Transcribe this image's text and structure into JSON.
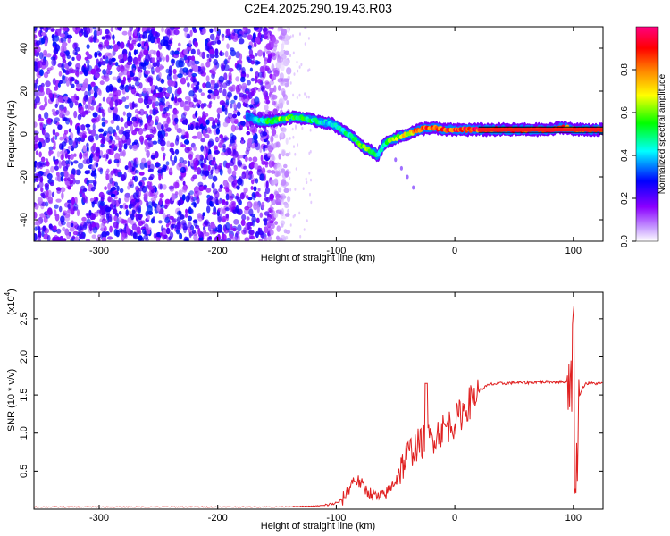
{
  "title": "C2E4.2025.290.19.43.R03",
  "top_panel": {
    "xlabel": "Height of straight line (km)",
    "ylabel": "Frequency (Hz)",
    "xlim": [
      -355,
      125
    ],
    "ylim": [
      -50,
      50
    ],
    "xticks": [
      {
        "v": -300,
        "t": "-300"
      },
      {
        "v": -200,
        "t": "-200"
      },
      {
        "v": -100,
        "t": "-100"
      },
      {
        "v": 0,
        "t": "0"
      },
      {
        "v": 100,
        "t": "100"
      }
    ],
    "yticks": [
      {
        "v": -40,
        "t": "-40"
      },
      {
        "v": -20,
        "t": "-20"
      },
      {
        "v": 0,
        "t": "0"
      },
      {
        "v": 20,
        "t": "20"
      },
      {
        "v": 40,
        "t": "40"
      }
    ],
    "colorbar": {
      "label": "Normalized spectral amplitude",
      "range": [
        0,
        1
      ],
      "ticks": [
        {
          "v": 0.0,
          "t": "0.0"
        },
        {
          "v": 0.2,
          "t": "0.2"
        },
        {
          "v": 0.4,
          "t": "0.4"
        },
        {
          "v": 0.6,
          "t": "0.6"
        },
        {
          "v": 0.8,
          "t": "0.8"
        }
      ],
      "colors": [
        "#ffffff",
        "#8b00ff",
        "#0000ff",
        "#00ffff",
        "#00ff00",
        "#ffff00",
        "#ff8000",
        "#ff0000",
        "#ff0080"
      ]
    }
  },
  "bottom_panel": {
    "xlabel": "Height of straight line (km)",
    "ylabel": "SNR (10 * v/v)",
    "multiplier_base": "(x10",
    "multiplier_exp": "4",
    "multiplier_close": ")",
    "xlim": [
      -355,
      125
    ],
    "ylim": [
      0,
      2.85
    ],
    "xticks": [
      {
        "v": -300,
        "t": "-300"
      },
      {
        "v": -200,
        "t": "-200"
      },
      {
        "v": -100,
        "t": "-100"
      },
      {
        "v": 0,
        "t": "0"
      },
      {
        "v": 100,
        "t": "100"
      }
    ],
    "yticks": [
      {
        "v": 0.5,
        "t": "0.5"
      },
      {
        "v": 1.0,
        "t": "1.0"
      },
      {
        "v": 1.5,
        "t": "1.5"
      },
      {
        "v": 2.0,
        "t": "2.0"
      },
      {
        "v": 2.5,
        "t": "2.5"
      }
    ]
  },
  "chart_data": [
    {
      "type": "heatmap",
      "title": "C2E4.2025.290.19.43.R03",
      "xlabel": "Height of straight line (km)",
      "ylabel": "Frequency (Hz)",
      "xlim": [
        -355,
        125
      ],
      "ylim": [
        -50,
        50
      ],
      "noise_region_x": [
        -355,
        -140
      ],
      "ridge": {
        "x": [
          -175,
          -165,
          -155,
          -145,
          -135,
          -125,
          -115,
          -105,
          -95,
          -85,
          -78,
          -70,
          -65,
          -60,
          -55,
          -50,
          -45,
          -40,
          -30,
          -20,
          -10,
          0,
          20,
          40,
          60,
          80,
          90,
          95,
          100,
          110,
          125
        ],
        "frequency": [
          8,
          6,
          6,
          7,
          8,
          7,
          6,
          5,
          2,
          -2,
          -6,
          -8,
          -10,
          -5,
          -3,
          -2,
          -1,
          0,
          2,
          3,
          2,
          2,
          2,
          2,
          2,
          2,
          3,
          3,
          2,
          2,
          2
        ],
        "amplitude": [
          0.3,
          0.45,
          0.55,
          0.6,
          0.55,
          0.5,
          0.45,
          0.4,
          0.45,
          0.5,
          0.6,
          0.55,
          0.45,
          0.5,
          0.55,
          0.6,
          0.65,
          0.7,
          0.8,
          0.85,
          0.85,
          0.85,
          0.9,
          0.9,
          0.9,
          0.9,
          0.9,
          0.7,
          0.8,
          0.9,
          0.9
        ]
      },
      "branch": {
        "x": [
          -50,
          -45,
          -40,
          -35
        ],
        "frequency": [
          -12,
          -16,
          -20,
          -25
        ]
      }
    },
    {
      "type": "line",
      "title": "",
      "xlabel": "Height of straight line (km)",
      "ylabel": "SNR (10 * v/v)",
      "xlim": [
        -355,
        125
      ],
      "ylim": [
        0,
        2.85
      ],
      "series": [
        {
          "name": "SNR",
          "color": "#e02020",
          "x": [
            -355,
            -300,
            -250,
            -200,
            -150,
            -120,
            -110,
            -100,
            -95,
            -90,
            -85,
            -80,
            -75,
            -70,
            -65,
            -60,
            -55,
            -50,
            -45,
            -40,
            -35,
            -30,
            -25,
            -20,
            -15,
            -10,
            -5,
            0,
            5,
            10,
            15,
            20,
            25,
            30,
            40,
            50,
            60,
            70,
            80,
            90,
            95,
            100,
            102,
            105,
            110,
            115,
            125
          ],
          "y": [
            0.03,
            0.03,
            0.03,
            0.03,
            0.03,
            0.04,
            0.05,
            0.08,
            0.12,
            0.25,
            0.4,
            0.35,
            0.25,
            0.2,
            0.15,
            0.18,
            0.25,
            0.4,
            0.55,
            0.7,
            0.8,
            0.85,
            0.9,
            0.92,
            1.0,
            1.05,
            1.1,
            1.15,
            1.25,
            1.35,
            1.45,
            1.55,
            1.6,
            1.64,
            1.65,
            1.66,
            1.66,
            1.67,
            1.67,
            1.67,
            1.68,
            1.7,
            0.2,
            1.5,
            1.65,
            1.65,
            1.65
          ]
        }
      ]
    }
  ]
}
